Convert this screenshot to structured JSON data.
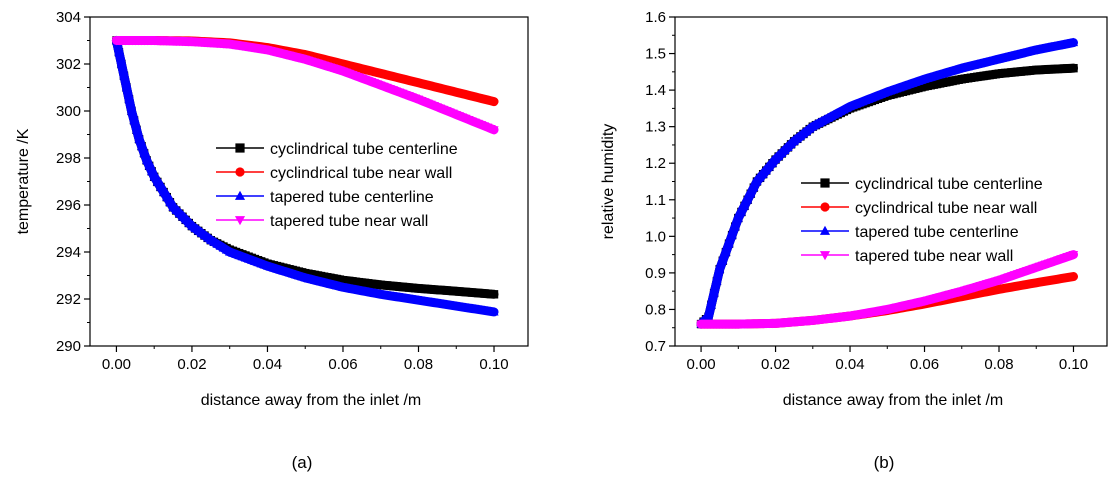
{
  "chart_data": [
    {
      "type": "line",
      "panel_label": "(a)",
      "xlabel": "distance away from the inlet  /m",
      "ylabel": "temperature /K",
      "xlim": [
        -0.007,
        0.109
      ],
      "ylim": [
        290,
        304
      ],
      "xticks": [
        0.0,
        0.02,
        0.04,
        0.06,
        0.08,
        0.1
      ],
      "xtick_labels": [
        "0.00",
        "0.02",
        "0.04",
        "0.06",
        "0.08",
        "0.10"
      ],
      "yticks": [
        290,
        292,
        294,
        296,
        298,
        300,
        302,
        304
      ],
      "ytick_labels": [
        "290",
        "292",
        "294",
        "296",
        "298",
        "300",
        "302",
        "304"
      ],
      "legend_position": "center-right",
      "series": [
        {
          "name": "cyclindrical tube centerline",
          "color": "#000000",
          "marker": "square",
          "x": [
            0.0,
            0.002,
            0.004,
            0.006,
            0.008,
            0.01,
            0.015,
            0.02,
            0.025,
            0.03,
            0.04,
            0.05,
            0.06,
            0.07,
            0.08,
            0.09,
            0.1
          ],
          "y": [
            303.0,
            301.5,
            300.0,
            298.8,
            297.9,
            297.2,
            295.9,
            295.1,
            294.5,
            294.1,
            293.5,
            293.1,
            292.8,
            292.6,
            292.45,
            292.33,
            292.2
          ]
        },
        {
          "name": "cyclindrical tube near wall",
          "color": "#ff0000",
          "marker": "circle",
          "x": [
            0.0,
            0.01,
            0.02,
            0.03,
            0.04,
            0.05,
            0.06,
            0.07,
            0.08,
            0.09,
            0.1
          ],
          "y": [
            303.0,
            303.0,
            302.98,
            302.9,
            302.7,
            302.4,
            302.0,
            301.6,
            301.2,
            300.8,
            300.4
          ]
        },
        {
          "name": "tapered tube centerline",
          "color": "#0000ff",
          "marker": "triangle-up",
          "x": [
            0.0,
            0.002,
            0.004,
            0.006,
            0.008,
            0.01,
            0.015,
            0.02,
            0.025,
            0.03,
            0.04,
            0.05,
            0.06,
            0.07,
            0.08,
            0.09,
            0.1
          ],
          "y": [
            303.0,
            301.5,
            300.0,
            298.8,
            297.9,
            297.2,
            295.9,
            295.1,
            294.5,
            294.0,
            293.4,
            292.9,
            292.5,
            292.2,
            291.95,
            291.7,
            291.45
          ]
        },
        {
          "name": "tapered tube near wall",
          "color": "#ff00ff",
          "marker": "triangle-down",
          "x": [
            0.0,
            0.01,
            0.02,
            0.03,
            0.04,
            0.05,
            0.06,
            0.07,
            0.08,
            0.09,
            0.1
          ],
          "y": [
            303.0,
            303.0,
            302.95,
            302.85,
            302.6,
            302.2,
            301.7,
            301.1,
            300.5,
            299.85,
            299.2
          ]
        }
      ]
    },
    {
      "type": "line",
      "panel_label": "(b)",
      "xlabel": "distance away from the inlet  /m",
      "ylabel": "relative humidity",
      "xlim": [
        -0.007,
        0.109
      ],
      "ylim": [
        0.7,
        1.6
      ],
      "xticks": [
        0.0,
        0.02,
        0.04,
        0.06,
        0.08,
        0.1
      ],
      "xtick_labels": [
        "0.00",
        "0.02",
        "0.04",
        "0.06",
        "0.08",
        "0.10"
      ],
      "yticks": [
        0.7,
        0.8,
        0.9,
        1.0,
        1.1,
        1.2,
        1.3,
        1.4,
        1.5,
        1.6
      ],
      "ytick_labels": [
        "0.7",
        "0.8",
        "0.9",
        "1.0",
        "1.1",
        "1.2",
        "1.3",
        "1.4",
        "1.5",
        "1.6"
      ],
      "legend_position": "center-right",
      "series": [
        {
          "name": "cyclindrical tube centerline",
          "color": "#000000",
          "marker": "square",
          "x": [
            0.0,
            0.002,
            0.005,
            0.01,
            0.015,
            0.02,
            0.025,
            0.03,
            0.04,
            0.05,
            0.06,
            0.07,
            0.08,
            0.09,
            0.1
          ],
          "y": [
            0.76,
            0.78,
            0.91,
            1.05,
            1.15,
            1.21,
            1.26,
            1.3,
            1.35,
            1.385,
            1.41,
            1.43,
            1.445,
            1.455,
            1.46
          ]
        },
        {
          "name": "cyclindrical tube near wall",
          "color": "#ff0000",
          "marker": "circle",
          "x": [
            0.0,
            0.01,
            0.02,
            0.03,
            0.04,
            0.05,
            0.06,
            0.07,
            0.08,
            0.09,
            0.1
          ],
          "y": [
            0.76,
            0.76,
            0.762,
            0.77,
            0.782,
            0.797,
            0.815,
            0.835,
            0.855,
            0.873,
            0.89
          ]
        },
        {
          "name": "tapered tube centerline",
          "color": "#0000ff",
          "marker": "triangle-up",
          "x": [
            0.0,
            0.002,
            0.005,
            0.01,
            0.015,
            0.02,
            0.025,
            0.03,
            0.04,
            0.05,
            0.06,
            0.07,
            0.08,
            0.09,
            0.1
          ],
          "y": [
            0.76,
            0.78,
            0.91,
            1.05,
            1.15,
            1.21,
            1.26,
            1.3,
            1.355,
            1.395,
            1.43,
            1.46,
            1.485,
            1.51,
            1.53
          ]
        },
        {
          "name": "tapered tube near wall",
          "color": "#ff00ff",
          "marker": "triangle-down",
          "x": [
            0.0,
            0.01,
            0.02,
            0.03,
            0.04,
            0.05,
            0.06,
            0.07,
            0.08,
            0.09,
            0.1
          ],
          "y": [
            0.76,
            0.76,
            0.762,
            0.77,
            0.782,
            0.8,
            0.823,
            0.85,
            0.88,
            0.915,
            0.95
          ]
        }
      ]
    }
  ]
}
